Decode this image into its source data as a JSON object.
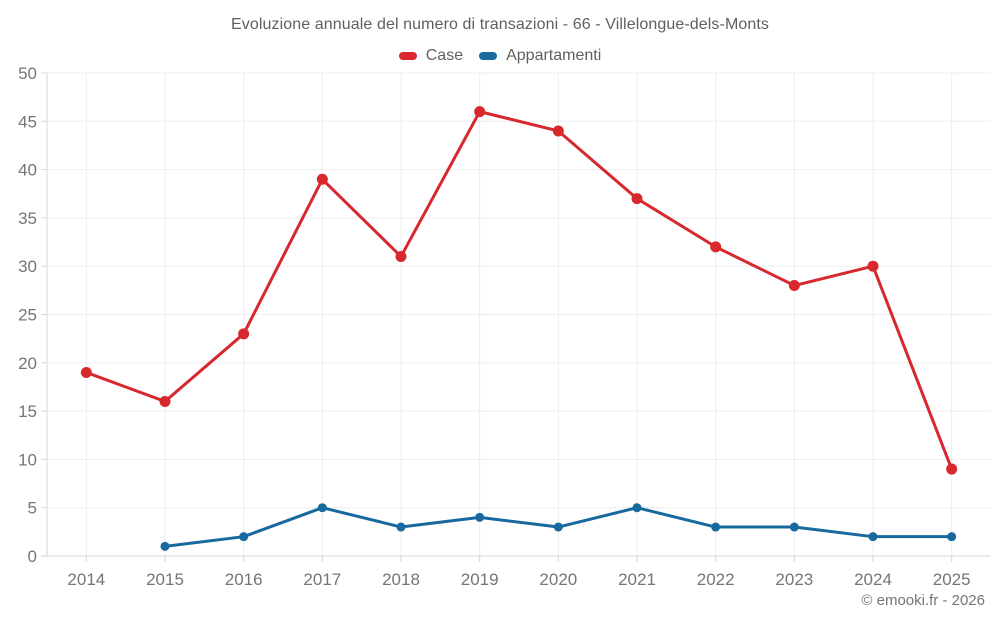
{
  "footer": "© emooki.fr - 2026",
  "chart_data": {
    "type": "line",
    "title": "Evoluzione annuale del numero di transazioni - 66 - Villelongue-dels-Monts",
    "categories": [
      "2014",
      "2015",
      "2016",
      "2017",
      "2018",
      "2019",
      "2020",
      "2021",
      "2022",
      "2023",
      "2024",
      "2025"
    ],
    "series": [
      {
        "name": "Case",
        "color": "#d7282d",
        "values": [
          19,
          16,
          23,
          39,
          31,
          46,
          44,
          37,
          32,
          28,
          30,
          9
        ]
      },
      {
        "name": "Appartamenti",
        "color": "#17699e",
        "values": [
          null,
          1,
          2,
          5,
          3,
          4,
          3,
          5,
          3,
          3,
          2,
          2
        ]
      }
    ],
    "ylim": [
      0,
      50
    ],
    "ytick_step": 5,
    "grid": true,
    "legend_position": "top",
    "xlabel": "",
    "ylabel": ""
  }
}
